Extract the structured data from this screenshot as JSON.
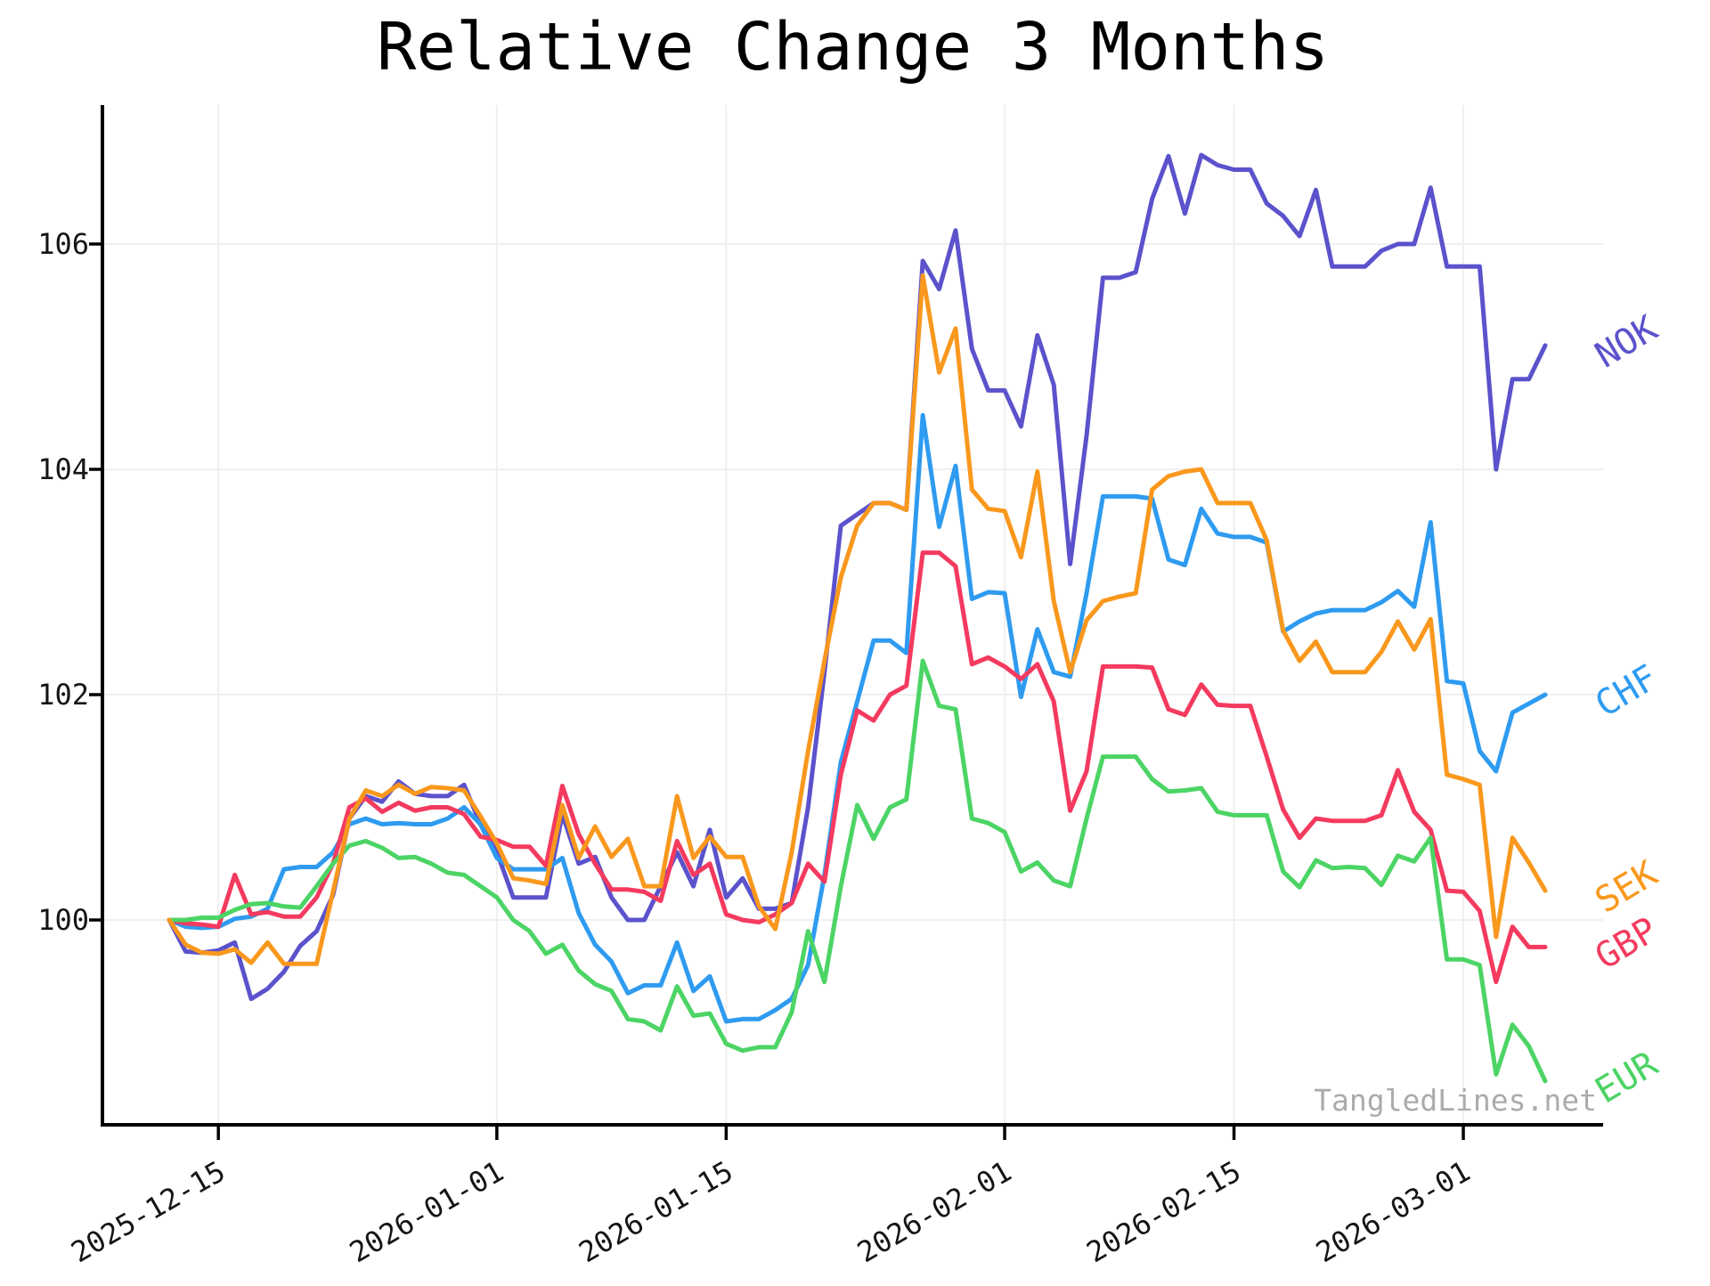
{
  "title": "Relative Change 3 Months",
  "watermark": "TangledLines.net",
  "chart_data": {
    "type": "line",
    "title": "Relative Change 3 Months",
    "x_axis": {
      "start_date": "2025-12-12",
      "end_date": "2026-03-06",
      "total_days": 84,
      "tick_days": [
        3,
        20,
        34,
        51,
        65,
        79
      ],
      "tick_labels": [
        "2025-12-15",
        "2026-01-01",
        "2026-01-15",
        "2026-02-01",
        "2026-02-15",
        "2026-03-01"
      ],
      "tick_rotation_deg": -30
    },
    "y_axis": {
      "ticks": [
        100,
        102,
        104,
        106
      ],
      "ylim": [
        98.18,
        107.23
      ]
    },
    "grid": true,
    "grid_color": "#efefef",
    "axis_color": "#000000",
    "tick_label_color": "#151515",
    "legend_position": "right-edge-labels",
    "draw_order": [
      0,
      1,
      3,
      4,
      2
    ],
    "series": [
      {
        "name": "NOK",
        "color": "#5B52CC",
        "values": [
          100.0,
          99.72,
          99.71,
          99.73,
          99.8,
          99.3,
          99.39,
          99.54,
          99.77,
          99.9,
          100.22,
          100.9,
          101.1,
          101.05,
          101.23,
          101.12,
          101.1,
          101.1,
          101.2,
          100.85,
          100.6,
          100.2,
          100.2,
          100.2,
          100.94,
          100.5,
          100.56,
          100.2,
          100.0,
          100.0,
          100.3,
          100.6,
          100.3,
          100.8,
          100.2,
          100.37,
          100.1,
          100.1,
          100.15,
          101.0,
          102.2,
          103.5,
          103.6,
          103.7,
          103.7,
          103.64,
          105.85,
          105.6,
          106.12,
          105.07,
          104.7,
          104.7,
          104.38,
          105.19,
          104.75,
          103.16,
          104.3,
          105.7,
          105.7,
          105.75,
          106.4,
          106.78,
          106.27,
          106.79,
          106.7,
          106.66,
          106.66,
          106.36,
          106.25,
          106.07,
          106.48,
          105.8,
          105.8,
          105.8,
          105.94,
          106.0,
          106.0,
          106.5,
          105.8,
          105.8,
          105.8,
          104.0,
          104.8,
          104.8,
          105.1
        ]
      },
      {
        "name": "CHF",
        "color": "#2E9BF0",
        "values": [
          100.0,
          99.94,
          99.93,
          99.94,
          100.01,
          100.03,
          100.1,
          100.45,
          100.47,
          100.47,
          100.6,
          100.85,
          100.9,
          100.85,
          100.86,
          100.85,
          100.85,
          100.9,
          101.0,
          100.85,
          100.55,
          100.45,
          100.45,
          100.45,
          100.55,
          100.06,
          99.78,
          99.63,
          99.35,
          99.42,
          99.42,
          99.8,
          99.37,
          99.5,
          99.1,
          99.12,
          99.12,
          99.2,
          99.3,
          99.6,
          100.4,
          101.4,
          101.94,
          102.48,
          102.48,
          102.37,
          104.48,
          103.49,
          104.03,
          102.85,
          102.91,
          102.9,
          101.98,
          102.58,
          102.2,
          102.16,
          102.9,
          103.76,
          103.76,
          103.76,
          103.74,
          103.2,
          103.15,
          103.65,
          103.43,
          103.4,
          103.4,
          103.35,
          102.56,
          102.65,
          102.72,
          102.75,
          102.75,
          102.75,
          102.82,
          102.92,
          102.78,
          103.53,
          102.12,
          102.1,
          101.5,
          101.32,
          101.84,
          101.92,
          102.0
        ]
      },
      {
        "name": "SEK",
        "color": "#F9981D",
        "values": [
          100.0,
          99.78,
          99.71,
          99.7,
          99.74,
          99.62,
          99.8,
          99.61,
          99.61,
          99.61,
          100.25,
          100.9,
          101.15,
          101.1,
          101.2,
          101.12,
          101.18,
          101.17,
          101.15,
          100.92,
          100.68,
          100.37,
          100.35,
          100.32,
          101.02,
          100.55,
          100.83,
          100.56,
          100.72,
          100.3,
          100.3,
          101.1,
          100.55,
          100.74,
          100.56,
          100.56,
          100.12,
          99.92,
          100.6,
          101.5,
          102.3,
          103.04,
          103.5,
          103.7,
          103.7,
          103.64,
          105.72,
          104.86,
          105.25,
          103.82,
          103.65,
          103.63,
          103.22,
          103.98,
          102.83,
          102.2,
          102.66,
          102.83,
          102.87,
          102.9,
          103.82,
          103.94,
          103.98,
          104.0,
          103.7,
          103.7,
          103.7,
          103.37,
          102.57,
          102.3,
          102.47,
          102.2,
          102.2,
          102.2,
          102.38,
          102.65,
          102.4,
          102.67,
          101.29,
          101.25,
          101.2,
          99.85,
          100.73,
          100.51,
          100.26
        ]
      },
      {
        "name": "GBP",
        "color": "#F43A5F",
        "values": [
          100.0,
          99.97,
          99.96,
          99.94,
          100.4,
          100.05,
          100.07,
          100.03,
          100.03,
          100.2,
          100.5,
          101.0,
          101.08,
          100.96,
          101.04,
          100.97,
          101.0,
          101.0,
          100.94,
          100.74,
          100.71,
          100.65,
          100.65,
          100.48,
          101.19,
          100.76,
          100.5,
          100.27,
          100.27,
          100.25,
          100.17,
          100.7,
          100.4,
          100.5,
          100.05,
          100.0,
          99.98,
          100.05,
          100.15,
          100.5,
          100.34,
          101.29,
          101.86,
          101.77,
          102.0,
          102.08,
          103.26,
          103.26,
          103.14,
          102.27,
          102.33,
          102.25,
          102.14,
          102.27,
          101.94,
          100.97,
          101.32,
          102.25,
          102.25,
          102.25,
          102.24,
          101.87,
          101.82,
          102.09,
          101.91,
          101.9,
          101.9,
          101.45,
          100.98,
          100.73,
          100.9,
          100.88,
          100.88,
          100.88,
          100.93,
          101.33,
          100.96,
          100.8,
          100.26,
          100.25,
          100.08,
          99.45,
          99.94,
          99.76,
          99.76
        ]
      },
      {
        "name": "EUR",
        "color": "#4CD465",
        "values": [
          100.0,
          100.0,
          100.02,
          100.02,
          100.09,
          100.14,
          100.15,
          100.12,
          100.11,
          100.3,
          100.5,
          100.66,
          100.7,
          100.64,
          100.55,
          100.56,
          100.5,
          100.42,
          100.4,
          100.3,
          100.2,
          100.0,
          99.9,
          99.7,
          99.78,
          99.55,
          99.43,
          99.37,
          99.12,
          99.1,
          99.02,
          99.41,
          99.15,
          99.17,
          98.9,
          98.84,
          98.87,
          98.87,
          99.18,
          99.9,
          99.45,
          100.3,
          101.02,
          100.72,
          101.0,
          101.07,
          102.3,
          101.9,
          101.87,
          100.9,
          100.86,
          100.78,
          100.43,
          100.51,
          100.35,
          100.3,
          100.9,
          101.45,
          101.45,
          101.45,
          101.25,
          101.14,
          101.15,
          101.17,
          100.96,
          100.93,
          100.93,
          100.93,
          100.43,
          100.29,
          100.53,
          100.46,
          100.47,
          100.46,
          100.31,
          100.57,
          100.52,
          100.73,
          99.65,
          99.65,
          99.6,
          98.63,
          99.07,
          98.88,
          98.57
        ]
      }
    ]
  }
}
